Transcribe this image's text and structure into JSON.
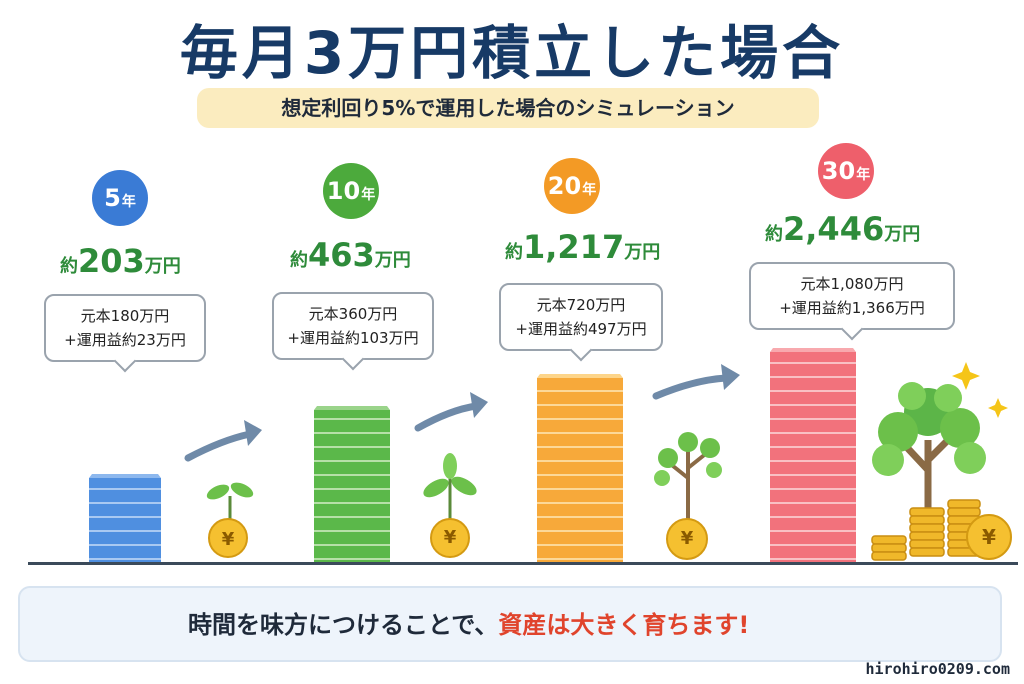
{
  "title": "毎月3万円積立した場合",
  "subtitle": "想定利回り5%で運用した場合のシミュレーション",
  "year_unit": "年",
  "approx_prefix": "約",
  "man_yen": "万円",
  "periods": [
    {
      "years": "5",
      "total": "203",
      "principal_line": "元本180万円",
      "gain_line": "+運用益約23万円",
      "color": "#3a7bd5"
    },
    {
      "years": "10",
      "total": "463",
      "principal_line": "元本360万円",
      "gain_line": "+運用益約103万円",
      "color": "#4caa3c"
    },
    {
      "years": "20",
      "total": "1,217",
      "principal_line": "元本720万円",
      "gain_line": "+運用益約497万円",
      "color": "#f39a25"
    },
    {
      "years": "30",
      "total": "2,446",
      "principal_line": "元本1,080万円",
      "gain_line": "+運用益約1,366万円",
      "color": "#ee5f6b"
    }
  ],
  "coin_symbol": "¥",
  "footer": {
    "text_before": "時間を味方につけることで、",
    "text_highlight": "資産は大きく育ちます!"
  },
  "site": "hirohiro0209.com"
}
